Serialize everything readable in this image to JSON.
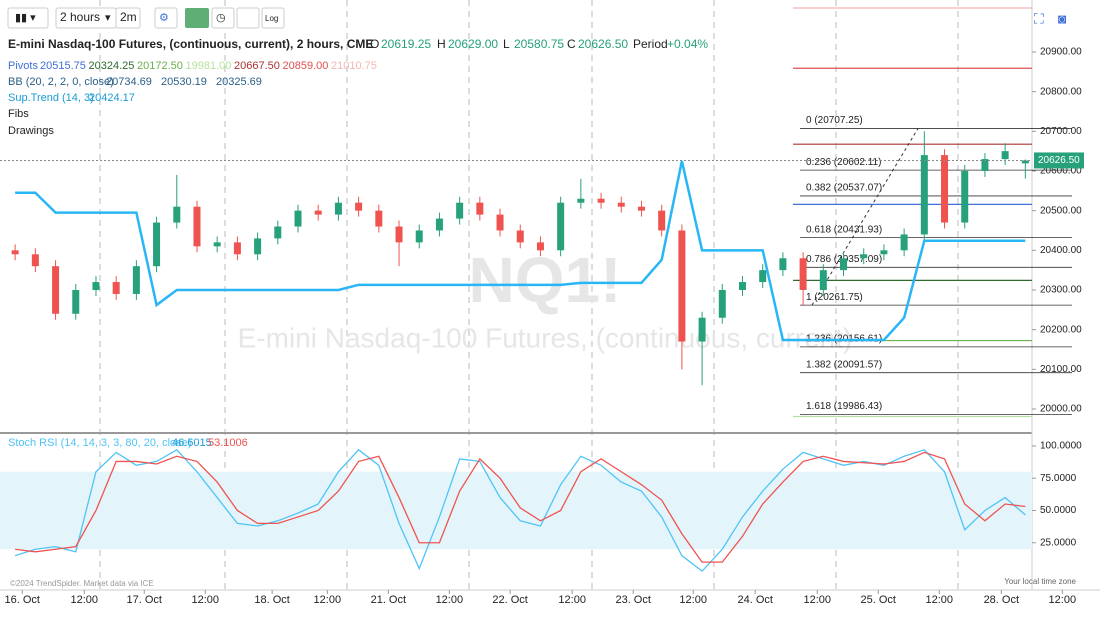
{
  "toolbar": {
    "interval": "2 hours",
    "alt_interval": "2m",
    "log": "Log"
  },
  "header": {
    "title": "E-mini Nasdaq-100 Futures, (continuous, current), 2 hours, CME",
    "o_key": "O",
    "open": "20619.25",
    "h_key": "H",
    "high": "20629.00",
    "l_key": "L",
    "low": "20580.75",
    "c_key": "C",
    "close": "20626.50",
    "period_key": "Period",
    "period": "+0.04%"
  },
  "legend": {
    "pivots": "Pivots",
    "bb": "BB (20, 2, 2, 0, close)",
    "bb_values": [
      "20734.69",
      "20530.19",
      "20325.69"
    ],
    "supertrend": "Sup.Trend (14, 3)",
    "supertrend_value": "20424.17",
    "fibs": "Fibs",
    "drawings": "Drawings",
    "stoch": "Stoch RSI (14, 14, 3, 3, 80, 20, close)"
  },
  "watermark": {
    "symbol": "NQ1!",
    "name": "E-mini Nasdaq-100 Futures, (continuous, current)"
  },
  "footer": {
    "credit": "©2024 TrendSpider. Market data via ICE",
    "timezone": "Your local time zone"
  },
  "chart_data": [
    {
      "type": "candlestick",
      "xlim": [
        -0.75,
        53.2
      ],
      "xticks": [
        {
          "value": 0.35,
          "label": "16. Oct"
        },
        {
          "value": 3.42,
          "label": "12:00"
        },
        {
          "value": 6.39,
          "label": "17. Oct"
        },
        {
          "value": 9.41,
          "label": "12:00"
        },
        {
          "value": 12.72,
          "label": "18. Oct"
        },
        {
          "value": 15.45,
          "label": "12:00"
        },
        {
          "value": 18.47,
          "label": "21. Oct"
        },
        {
          "value": 21.49,
          "label": "12:00"
        },
        {
          "value": 24.5,
          "label": "22. Oct"
        },
        {
          "value": 27.57,
          "label": "12:00"
        },
        {
          "value": 30.59,
          "label": "23. Oct"
        },
        {
          "value": 33.56,
          "label": "12:00"
        },
        {
          "value": 36.63,
          "label": "24. Oct"
        },
        {
          "value": 39.7,
          "label": "12:00"
        },
        {
          "value": 42.72,
          "label": "25. Oct"
        },
        {
          "value": 45.74,
          "label": "12:00"
        },
        {
          "value": 48.81,
          "label": "28. Oct"
        },
        {
          "value": 51.83,
          "label": "12:00"
        }
      ],
      "ylim": [
        19942,
        21031
      ],
      "yticks": [
        {
          "value": 20000,
          "label": "20000.00"
        },
        {
          "value": 20100,
          "label": "20100.00"
        },
        {
          "value": 20200,
          "label": "20200.00"
        },
        {
          "value": 20300,
          "label": "20300.00"
        },
        {
          "value": 20400,
          "label": "20400.00"
        },
        {
          "value": 20500,
          "label": "20500.00"
        },
        {
          "value": 20600,
          "label": "20600.00"
        },
        {
          "value": 20700,
          "label": "20700.00"
        },
        {
          "value": 20800,
          "label": "20800.00"
        },
        {
          "value": 20900,
          "label": "20900.00"
        }
      ],
      "up_color": "#26a17b",
      "down_color": "#ef5350",
      "open": [
        20400,
        20390,
        20360,
        20240,
        20300,
        20320,
        20290,
        20360,
        20470,
        20510,
        20410,
        20420,
        20390,
        20430,
        20460,
        20500,
        20490,
        20520,
        20500,
        20460,
        20420,
        20450,
        20480,
        20520,
        20490,
        20450,
        20420,
        20400,
        20520,
        20530,
        20520,
        20510,
        20500,
        20450,
        20170,
        20230,
        20300,
        20320,
        20350,
        20380,
        20300,
        20350,
        20380,
        20390,
        20400,
        20440,
        20640,
        20470,
        20600,
        20630,
        20619.25
      ],
      "high": [
        20415,
        20405,
        20375,
        20315,
        20335,
        20335,
        20375,
        20485,
        20590,
        20525,
        20435,
        20435,
        20445,
        20475,
        20515,
        20515,
        20535,
        20535,
        20515,
        20475,
        20465,
        20495,
        20535,
        20535,
        20505,
        20465,
        20435,
        20535,
        20580,
        20545,
        20535,
        20525,
        20515,
        20465,
        20245,
        20315,
        20335,
        20365,
        20395,
        20395,
        20365,
        20395,
        20405,
        20415,
        20455,
        20700,
        20655,
        20615,
        20645,
        20670,
        20629
      ],
      "low": [
        20375,
        20345,
        20225,
        20225,
        20285,
        20275,
        20275,
        20345,
        20455,
        20395,
        20395,
        20375,
        20375,
        20415,
        20445,
        20475,
        20475,
        20485,
        20445,
        20360,
        20405,
        20435,
        20465,
        20475,
        20435,
        20405,
        20385,
        20385,
        20505,
        20505,
        20495,
        20485,
        20435,
        20100,
        20060,
        20215,
        20285,
        20305,
        20335,
        20260,
        20285,
        20335,
        20365,
        20375,
        20385,
        20425,
        20455,
        20455,
        20585,
        20615,
        20580.75
      ],
      "close": [
        20390,
        20360,
        20240,
        20300,
        20320,
        20290,
        20360,
        20470,
        20510,
        20410,
        20420,
        20390,
        20430,
        20460,
        20500,
        20490,
        20520,
        20500,
        20460,
        20420,
        20450,
        20480,
        20520,
        20490,
        20450,
        20420,
        20400,
        20520,
        20530,
        20520,
        20510,
        20500,
        20450,
        20170,
        20230,
        20300,
        20320,
        20350,
        20380,
        20300,
        20350,
        20380,
        20390,
        20400,
        20440,
        20640,
        20470,
        20600,
        20630,
        20650,
        20626.5
      ],
      "supertrend": {
        "color": "#29b6f6",
        "values": [
          20545,
          20545,
          20495,
          20495,
          20495,
          20495,
          20495,
          20262,
          20300,
          20300,
          20300,
          20300,
          20300,
          20300,
          20300,
          20300,
          20300,
          20313,
          20313,
          20313,
          20313,
          20313,
          20313,
          20313,
          20313,
          20313,
          20313,
          20313,
          20318,
          20318,
          20318,
          20318,
          20376,
          20625,
          20400,
          20400,
          20400,
          20400,
          20174,
          20174,
          20174,
          20174,
          20174,
          20174,
          20230,
          20424.17,
          20424.17,
          20424.17,
          20424.17,
          20424.17,
          20424.17
        ]
      },
      "pivots": {
        "values": [
          20515.75,
          20324.25,
          20172.5,
          19981,
          20667.5,
          20859,
          21010.75
        ],
        "value_labels": [
          "20515.75",
          "20324.25",
          "20172.50",
          "19981.00",
          "20667.50",
          "20859.00",
          "21010.75"
        ],
        "colors": [
          "#3f6fd8",
          "#2f6b2f",
          "#6ab04c",
          "#b8e0a0",
          "#a83232",
          "#e05050",
          "#f5b5b5"
        ]
      },
      "fibs": [
        {
          "label": "0 (20707.25)",
          "value": 20707.25
        },
        {
          "label": "0.236 (20602.11)",
          "value": 20602.11
        },
        {
          "label": "0.382 (20537.07)",
          "value": 20537.07
        },
        {
          "label": "0.618 (20431.93)",
          "value": 20431.93
        },
        {
          "label": "0.786 (20357.09)",
          "value": 20357.09
        },
        {
          "label": "1 (20261.75)",
          "value": 20261.75
        },
        {
          "label": "1.236 (20156.61)",
          "value": 20156.61
        },
        {
          "label": "1.382 (20091.57)",
          "value": 20091.57
        },
        {
          "label": "1.618 (19986.43)",
          "value": 19986.43
        }
      ]
    },
    {
      "type": "line",
      "ylim": [
        -11.6,
        107.7
      ],
      "yticks": [
        {
          "value": 25,
          "label": "25.0000"
        },
        {
          "value": 50,
          "label": "50.0000"
        },
        {
          "value": 75,
          "label": "75.0000"
        },
        {
          "value": 100,
          "label": "100.0000"
        }
      ],
      "band": [
        20,
        80
      ],
      "series": [
        {
          "color": "#4fc3f7",
          "values": [
            15,
            20,
            22,
            18,
            80,
            95,
            85,
            88,
            97,
            80,
            60,
            40,
            38,
            42,
            48,
            55,
            80,
            97,
            85,
            40,
            5,
            45,
            90,
            88,
            60,
            42,
            38,
            70,
            92,
            85,
            72,
            65,
            45,
            15,
            3,
            20,
            45,
            65,
            82,
            95,
            90,
            85,
            88,
            85,
            92,
            97,
            80,
            35,
            50,
            60,
            46.6015
          ]
        },
        {
          "color": "#ef5350",
          "values": [
            20,
            18,
            20,
            22,
            50,
            88,
            88,
            86,
            92,
            88,
            72,
            50,
            40,
            40,
            45,
            50,
            65,
            88,
            92,
            60,
            25,
            25,
            65,
            90,
            75,
            52,
            42,
            50,
            80,
            90,
            80,
            70,
            58,
            32,
            10,
            10,
            30,
            55,
            72,
            88,
            92,
            88,
            87,
            86,
            88,
            95,
            90,
            55,
            42,
            55,
            53.1006
          ]
        }
      ]
    }
  ]
}
